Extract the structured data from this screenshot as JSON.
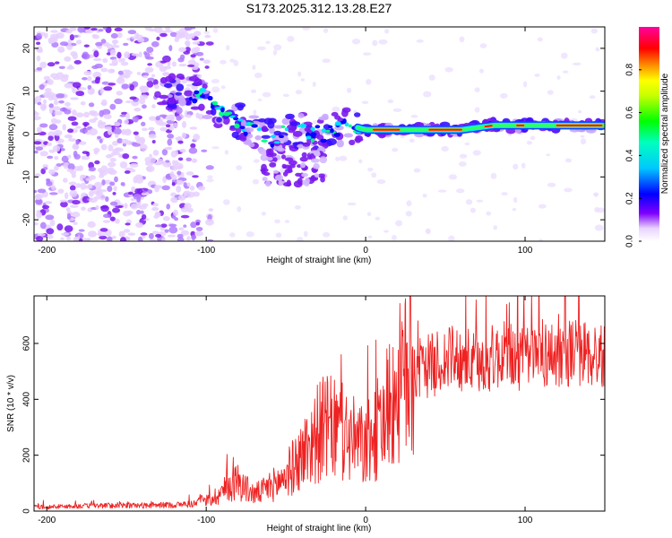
{
  "title": "S173.2025.312.13.28.E27",
  "chart_data": [
    {
      "type": "heatmap",
      "xlabel": "Height of straight line (km)",
      "ylabel": "Frequency (Hz)",
      "xlim": [
        -208,
        150
      ],
      "ylim": [
        -25,
        25
      ],
      "xticks": [
        "-200",
        "-100",
        "0",
        "100"
      ],
      "yticks": [
        "-20",
        "-10",
        "0",
        "10",
        "20"
      ],
      "xtick_values": [
        -200,
        -100,
        0,
        100
      ],
      "ytick_values": [
        -20,
        -10,
        0,
        10,
        20
      ],
      "ridge": {
        "x": [
          -125,
          -110,
          -100,
          -90,
          -80,
          -70,
          -60,
          -50,
          -40,
          -30,
          -20,
          -10,
          0,
          20,
          40,
          60,
          80,
          100,
          120,
          150
        ],
        "y": [
          10,
          10,
          8,
          5,
          3,
          1,
          -1,
          0,
          1,
          0,
          1,
          2,
          1,
          1,
          1,
          1,
          2,
          2,
          2,
          2
        ]
      },
      "colorbar": {
        "label": "Normalized spectral amplitude",
        "ticks": [
          "0.0",
          "0.2",
          "0.4",
          "0.6",
          "0.8"
        ],
        "tick_values": [
          0.0,
          0.2,
          0.4,
          0.6,
          0.8
        ],
        "range": [
          0,
          1
        ],
        "colors": [
          "#ffffff",
          "#7f00ff",
          "#0000ff",
          "#00ffff",
          "#00ff00",
          "#ffff00",
          "#ff8000",
          "#ff0000",
          "#ff00a0"
        ]
      }
    },
    {
      "type": "line",
      "xlabel": "Height of straight line (km)",
      "ylabel": "SNR (10 * v/v)",
      "xlim": [
        -208,
        150
      ],
      "ylim": [
        0,
        770
      ],
      "xticks": [
        "-200",
        "-100",
        "0",
        "100"
      ],
      "yticks": [
        "0",
        "200",
        "400",
        "600"
      ],
      "xtick_values": [
        -200,
        -100,
        0,
        100
      ],
      "ytick_values": [
        0,
        200,
        400,
        600
      ],
      "color": "#ee2222",
      "series": [
        {
          "name": "SNR",
          "x": [
            -208,
            -200,
            -180,
            -160,
            -140,
            -120,
            -110,
            -100,
            -95,
            -90,
            -85,
            -80,
            -75,
            -70,
            -65,
            -60,
            -55,
            -50,
            -45,
            -40,
            -35,
            -30,
            -25,
            -20,
            -15,
            -10,
            -5,
            0,
            5,
            10,
            15,
            20,
            25,
            30,
            40,
            50,
            60,
            70,
            80,
            90,
            100,
            110,
            120,
            130,
            140,
            150
          ],
          "y": [
            15,
            15,
            18,
            20,
            20,
            22,
            25,
            35,
            50,
            70,
            90,
            110,
            80,
            60,
            70,
            90,
            100,
            130,
            160,
            200,
            240,
            280,
            300,
            290,
            280,
            260,
            240,
            230,
            260,
            320,
            380,
            440,
            480,
            500,
            520,
            540,
            550,
            520,
            550,
            560,
            540,
            560,
            560,
            570,
            560,
            555
          ]
        }
      ]
    }
  ]
}
